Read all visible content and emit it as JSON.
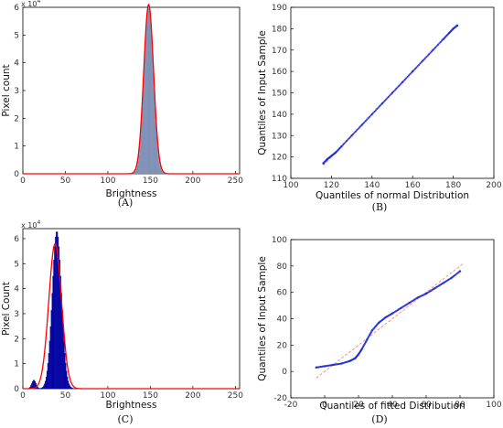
{
  "chart_data": [
    {
      "panel": "(A)",
      "type": "histogram",
      "xlabel": "Brightness",
      "ylabel": "Pixel count",
      "y_multiplier": "x 10",
      "y_multiplier_exp": "4",
      "xlim": [
        0,
        255
      ],
      "ylim": [
        0,
        6
      ],
      "xticks": [
        0,
        50,
        100,
        150,
        200,
        250
      ],
      "yticks": [
        0,
        1,
        2,
        3,
        4,
        5,
        6
      ],
      "histogram": {
        "mean": 148,
        "sd": 5.5,
        "peak": 6.1,
        "color": "#7f8fb5"
      },
      "fit": {
        "mean": 148,
        "sd": 5.8,
        "peak": 6.1,
        "color": "#ff0000"
      }
    },
    {
      "panel": "(B)",
      "type": "scatter",
      "xlabel": "Quantiles of normal Distribution",
      "ylabel": "Quantiles of Input Sample",
      "xlim": [
        100,
        200
      ],
      "ylim": [
        110,
        190
      ],
      "xticks": [
        100,
        120,
        140,
        160,
        180,
        200
      ],
      "yticks": [
        110,
        120,
        130,
        140,
        150,
        160,
        170,
        180,
        190
      ],
      "x": [
        116,
        118,
        120,
        122,
        125,
        130,
        135,
        140,
        145,
        150,
        155,
        160,
        165,
        170,
        175,
        178,
        180,
        182
      ],
      "y": [
        117,
        119,
        120.5,
        122,
        125,
        130,
        135,
        140,
        145,
        150,
        155,
        160,
        165,
        170,
        175,
        178,
        180,
        181.5
      ],
      "reference_line": {
        "x": [
          116,
          182
        ],
        "y": [
          116,
          182
        ],
        "color": "#ff0000"
      },
      "point_color": "#1f2fd8"
    },
    {
      "panel": "(C)",
      "type": "histogram",
      "xlabel": "Brightness",
      "ylabel": "Pixel Count",
      "y_multiplier": "x 10",
      "y_multiplier_exp": "4",
      "xlim": [
        0,
        255
      ],
      "ylim": [
        0,
        6.4
      ],
      "xticks": [
        0,
        50,
        100,
        150,
        200,
        250
      ],
      "yticks": [
        0,
        1,
        2,
        3,
        4,
        5,
        6
      ],
      "histogram": {
        "mean": 40,
        "sd": 5.5,
        "peak": 6.3,
        "shoulder_at": 13,
        "shoulder_height": 0.35,
        "color": "#0000a0"
      },
      "fit": {
        "mean": 38,
        "sd": 7.5,
        "peak": 5.8,
        "color": "#ff0000"
      }
    },
    {
      "panel": "(D)",
      "type": "scatter",
      "xlabel": "Quantiles of fitted Distribution",
      "ylabel": "Quantiles of Input Sample",
      "xlim": [
        -20,
        100
      ],
      "ylim": [
        -20,
        100
      ],
      "xticks": [
        -20,
        0,
        20,
        40,
        60,
        80,
        100
      ],
      "yticks": [
        -20,
        0,
        20,
        40,
        60,
        80,
        100
      ],
      "x": [
        -5,
        0,
        5,
        10,
        15,
        18,
        20,
        22,
        25,
        28,
        32,
        36,
        40,
        45,
        50,
        55,
        60,
        65,
        70,
        75,
        80
      ],
      "y": [
        3,
        4,
        5,
        6,
        8,
        10,
        13,
        17,
        24,
        31,
        37,
        41,
        44,
        48,
        52,
        56,
        59,
        63,
        67,
        71,
        76
      ],
      "reference_line": {
        "x": [
          -5,
          82
        ],
        "y": [
          -5,
          82
        ],
        "color": "#ff0000"
      },
      "point_color": "#1f2fd8"
    }
  ]
}
